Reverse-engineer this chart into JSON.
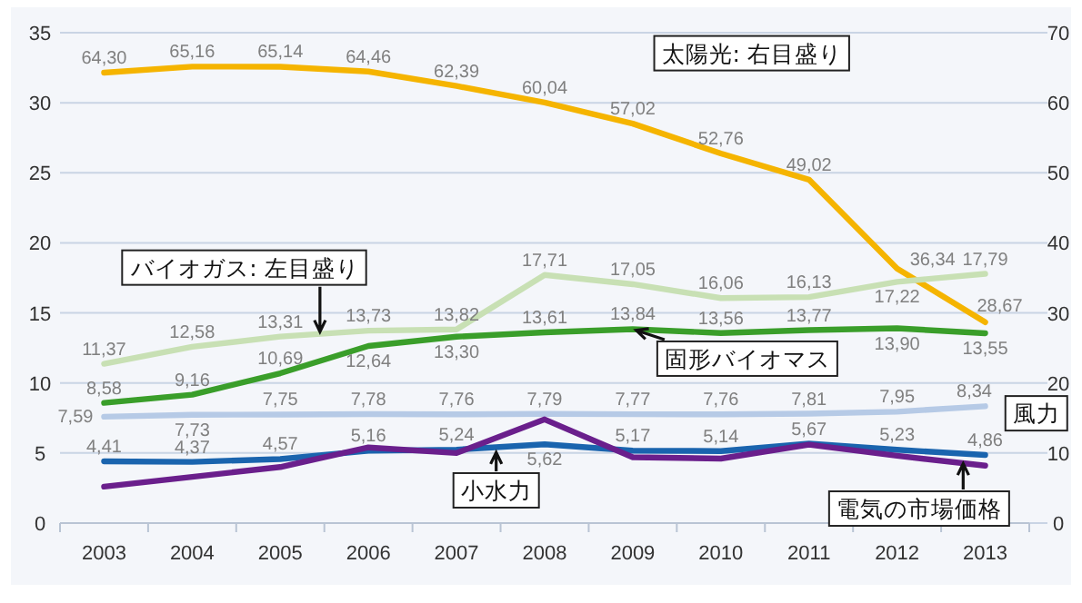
{
  "chart_data": {
    "type": "line",
    "categories": [
      "2003",
      "2004",
      "2005",
      "2006",
      "2007",
      "2008",
      "2009",
      "2010",
      "2011",
      "2012",
      "2013"
    ],
    "ylim": [
      0,
      35
    ],
    "yticks": [
      0,
      5,
      10,
      15,
      20,
      25,
      30,
      35
    ],
    "y2lim": [
      0,
      70
    ],
    "y2ticks": [
      0,
      10,
      20,
      30,
      40,
      50,
      60,
      70
    ],
    "grid": "y",
    "legend": false,
    "series": [
      {
        "name": "太陽光: 右目盛り",
        "color": "#f5b400",
        "axis": "y2",
        "values": [
          64.3,
          65.16,
          65.14,
          64.46,
          62.39,
          60.04,
          57.02,
          52.76,
          49.02,
          36.34,
          28.67
        ],
        "value_labels": [
          "64,30",
          "65,16",
          "65,14",
          "64,46",
          "62,39",
          "60,04",
          "57,02",
          "52,76",
          "49,02",
          "36,34",
          "28,67"
        ]
      },
      {
        "name": "バイオガス: 左目盛り",
        "color": "#c8e0b4",
        "values": [
          11.37,
          12.58,
          13.31,
          13.73,
          13.82,
          17.71,
          17.05,
          16.06,
          16.13,
          17.22,
          17.79
        ],
        "value_labels": [
          "11,37",
          "12,58",
          "13,31",
          "13,73",
          "13,82",
          "17,71",
          "17,05",
          "16,06",
          "16,13",
          "17,22",
          "17,79"
        ]
      },
      {
        "name": "固形バイオマス",
        "color": "#3a9e2a",
        "values": [
          8.58,
          9.16,
          10.69,
          12.64,
          13.3,
          13.61,
          13.84,
          13.56,
          13.77,
          13.9,
          13.55
        ],
        "value_labels": [
          "8,58",
          "9,16",
          "10,69",
          "12,64",
          "13,30",
          "13,61",
          "13,84",
          "13,56",
          "13,77",
          "13,90",
          "13,55"
        ]
      },
      {
        "name": "風力",
        "color": "#b6cae6",
        "values": [
          7.59,
          7.73,
          7.75,
          7.78,
          7.76,
          7.79,
          7.77,
          7.76,
          7.81,
          7.95,
          8.34
        ],
        "value_labels": [
          "7,59",
          "7,73",
          "7,75",
          "7,78",
          "7,76",
          "7,79",
          "7,77",
          "7,76",
          "7,81",
          "7,95",
          "8,34"
        ]
      },
      {
        "name": "小水力",
        "color": "#1a64ae",
        "values": [
          4.41,
          4.37,
          4.57,
          5.16,
          5.24,
          5.62,
          5.17,
          5.14,
          5.67,
          5.23,
          4.86
        ],
        "value_labels": [
          "4,41",
          "4,37",
          "4,57",
          "5,16",
          "5,24",
          "5,62",
          "5,17",
          "5,14",
          "5,67",
          "5,23",
          "4,86"
        ]
      },
      {
        "name": "電気の市場価格",
        "color": "#6a1f8c",
        "values": [
          2.6,
          3.3,
          4.0,
          5.4,
          5.0,
          7.4,
          4.7,
          4.6,
          5.6,
          4.8,
          4.1
        ]
      }
    ]
  }
}
